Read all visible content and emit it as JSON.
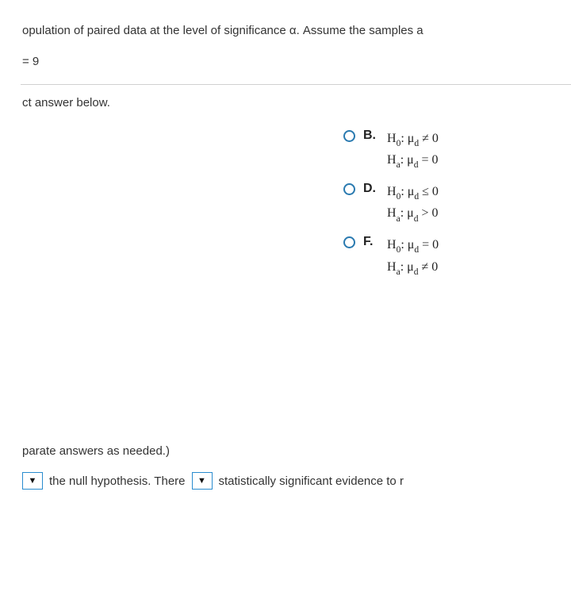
{
  "question": {
    "line1": "opulation of paired data at the level of significance α. Assume the samples a",
    "given": "= 9",
    "prompt": "ct answer below."
  },
  "options": [
    {
      "letter": "B.",
      "h0": "H₀: μ_d ≠ 0",
      "ha": "Hₐ: μ_d = 0"
    },
    {
      "letter": "D.",
      "h0": "H₀: μ_d ≤ 0",
      "ha": "Hₐ: μ_d > 0"
    },
    {
      "letter": "F.",
      "h0": "H₀: μ_d = 0",
      "ha": "Hₐ: μ_d ≠ 0"
    }
  ],
  "bottom": {
    "note": "parate answers as needed.)",
    "sentence_part1": "the null hypothesis. There",
    "sentence_part2": "statistically significant evidence to r"
  },
  "styling": {
    "radio_border": "#2a7ab0",
    "dropdown_border": "#2a8ccf",
    "hr_color": "#d0d0d0",
    "background": "#ffffff",
    "body_font": "Arial",
    "option_font": "Times New Roman",
    "body_fontsize": 15,
    "option_fontsize": 16
  }
}
